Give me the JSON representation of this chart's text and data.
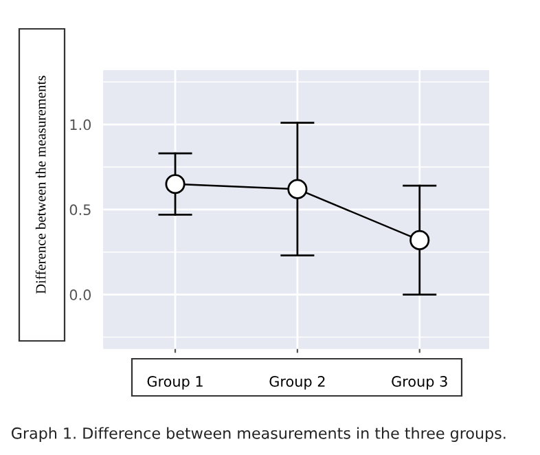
{
  "chart_data": {
    "type": "line",
    "ylabel": "Difference between the measurements",
    "categories": [
      "Group 1",
      "Group 2",
      "Group 3"
    ],
    "series": [
      {
        "color": "#000000",
        "values": [
          0.65,
          0.62,
          0.32
        ],
        "errors": [
          [
            0.47,
            0.83
          ],
          [
            0.23,
            1.01
          ],
          [
            0.0,
            0.64
          ]
        ]
      }
    ],
    "ylim": [
      -0.32,
      1.32
    ],
    "yticks": [
      {
        "value": 0,
        "label": "0.0"
      },
      0.5,
      {
        "value": 1,
        "label": "1.0"
      }
    ],
    "grid": true,
    "marker": "circle",
    "line_style": "solid",
    "annotations": [
      "Graph 1. Difference between measurements in the three groups."
    ]
  }
}
